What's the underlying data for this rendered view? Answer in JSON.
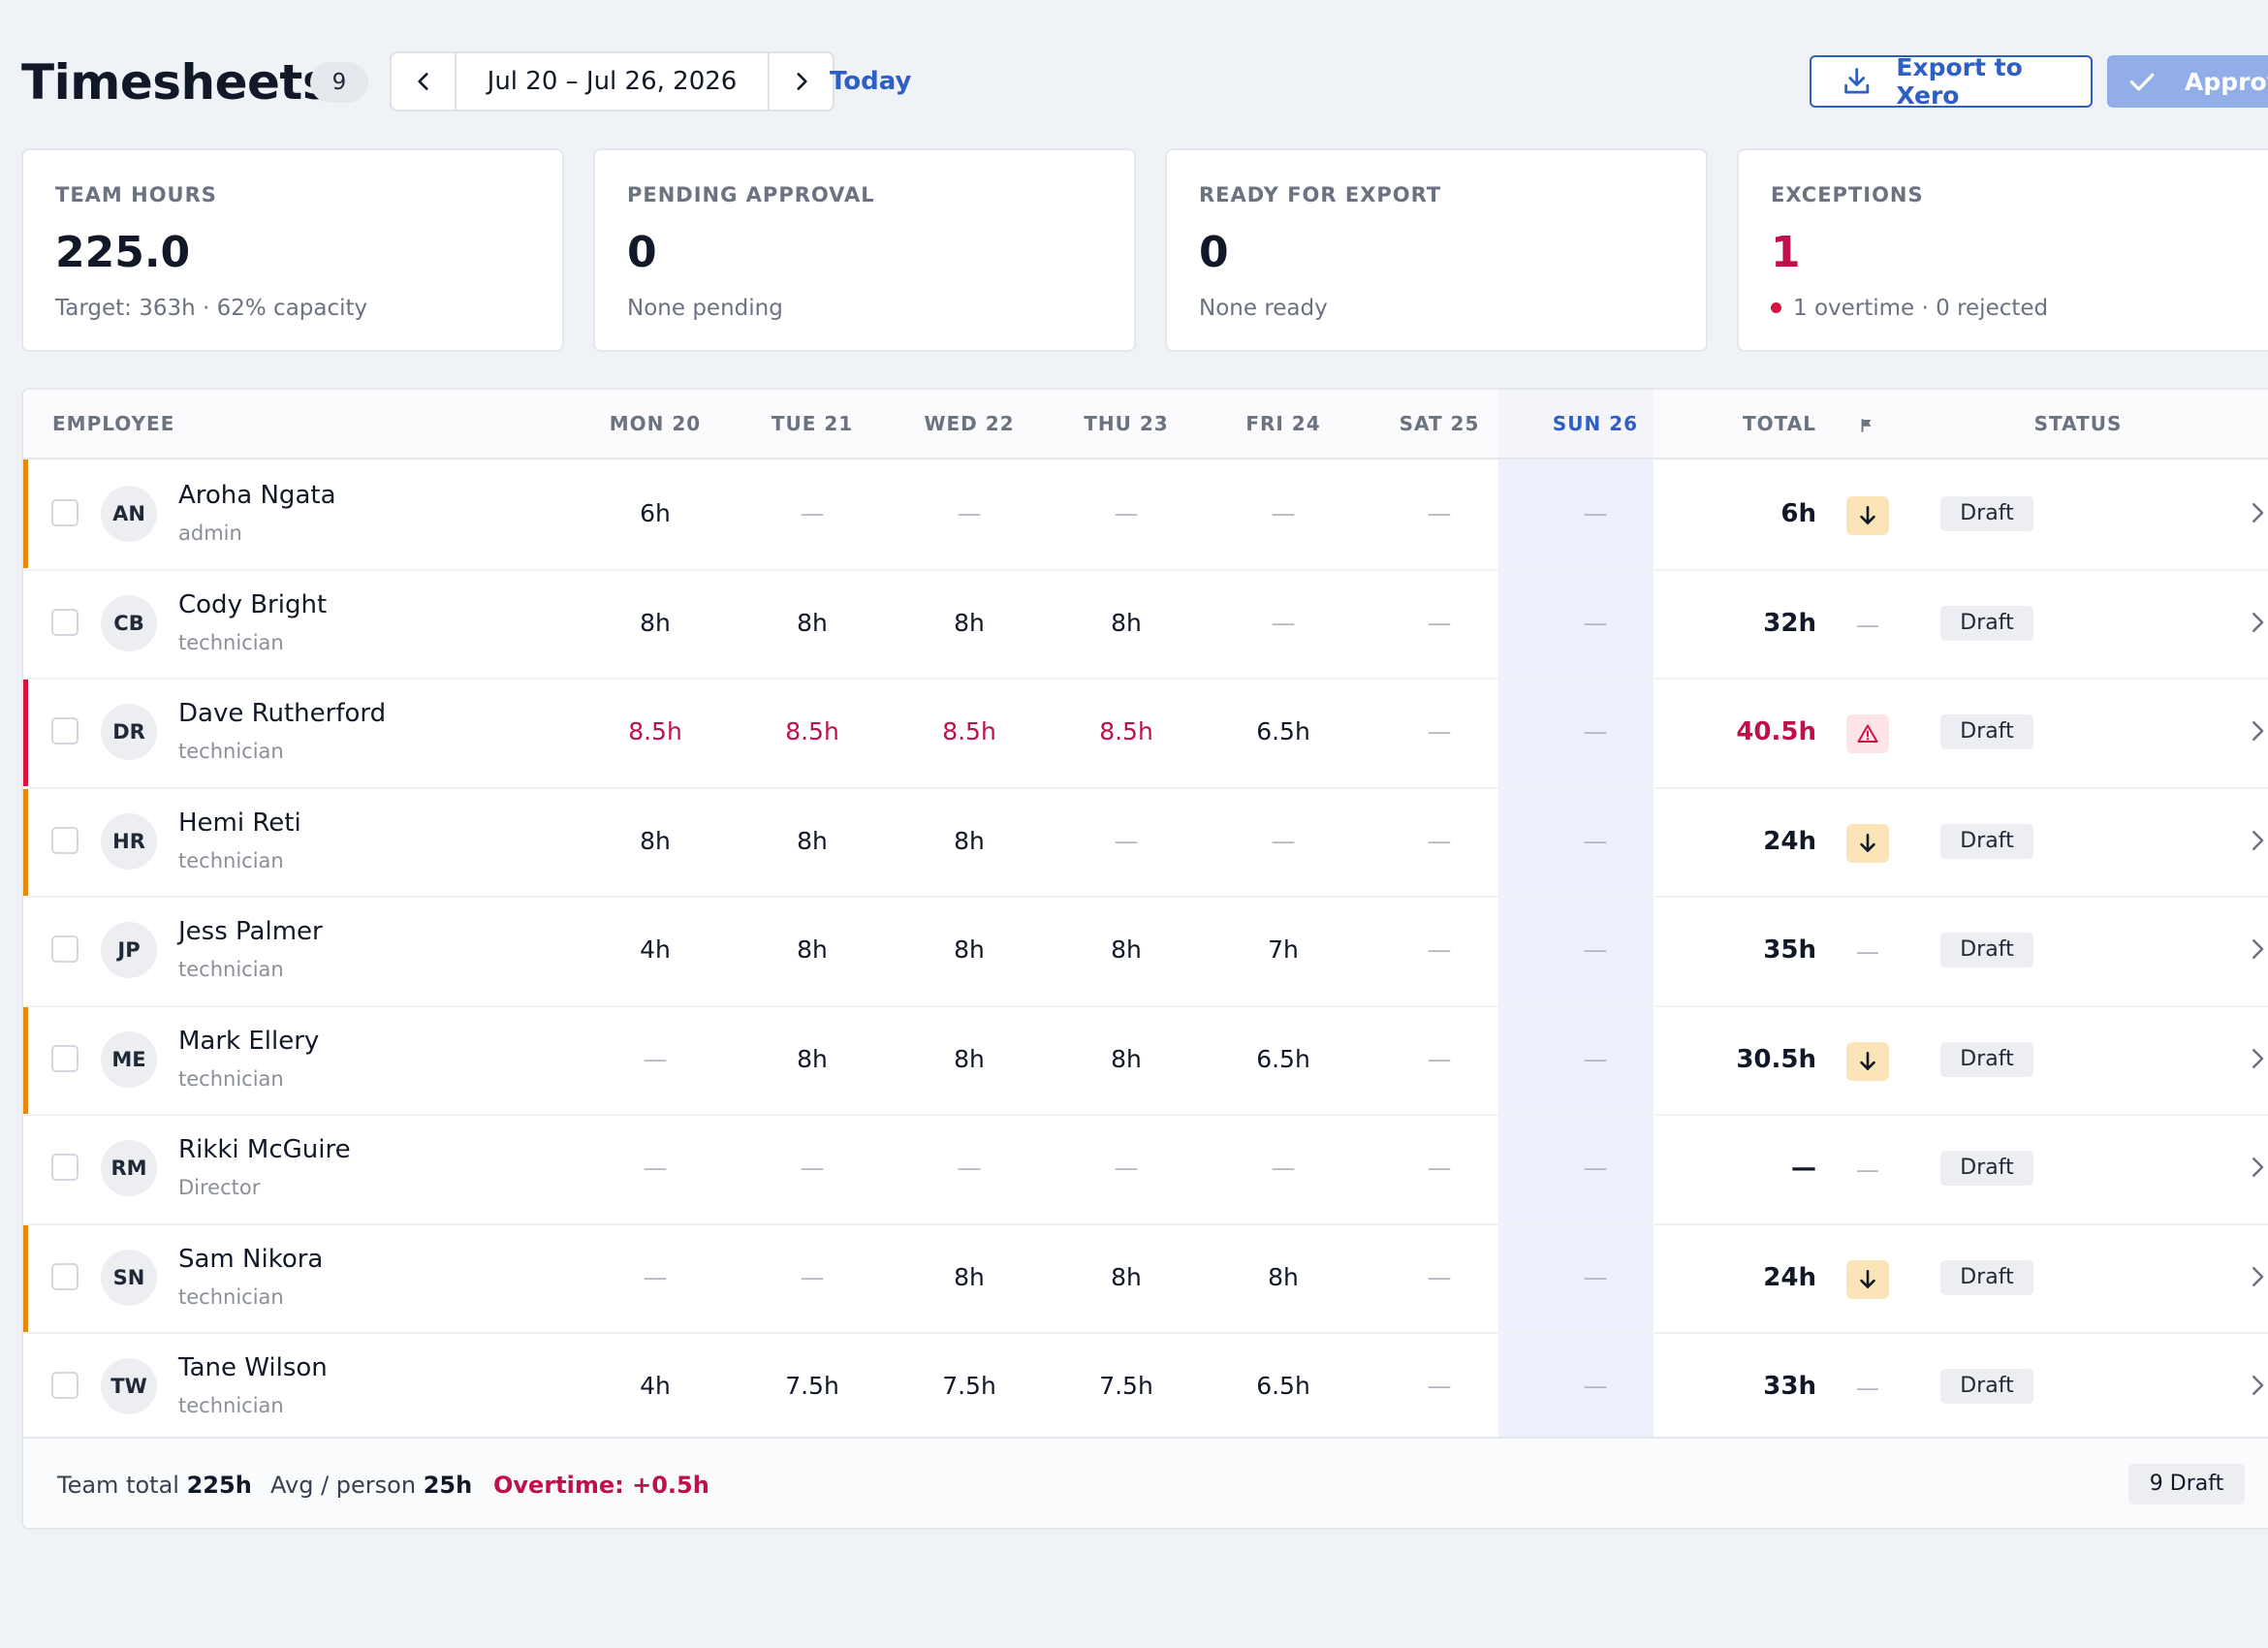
{
  "header": {
    "title": "Timesheets",
    "count": "9",
    "date_range": "Jul 20 – Jul 26, 2026",
    "today_label": "Today",
    "export_label": "Export to Xero",
    "approve_label": "Approve"
  },
  "cards": [
    {
      "label": "TEAM HOURS",
      "value": "225.0",
      "sub": "Target: 363h · 62% capacity"
    },
    {
      "label": "PENDING APPROVAL",
      "value": "0",
      "sub": "None pending"
    },
    {
      "label": "READY FOR EXPORT",
      "value": "0",
      "sub": "None ready"
    },
    {
      "label": "EXCEPTIONS",
      "value": "1",
      "sub": "1 overtime · 0 rejected"
    }
  ],
  "table": {
    "headers": {
      "employee": "EMPLOYEE",
      "days": [
        "MON 20",
        "TUE 21",
        "WED 22",
        "THU 23",
        "FRI 24",
        "SAT 25",
        "SUN 26"
      ],
      "total": "TOTAL",
      "status": "STATUS"
    },
    "rows": [
      {
        "initials": "AN",
        "name": "Aroha Ngata",
        "role": "admin",
        "days": [
          "6h",
          "—",
          "—",
          "—",
          "—",
          "—",
          "—"
        ],
        "total": "6h"
      },
      {
        "initials": "CB",
        "name": "Cody Bright",
        "role": "technician",
        "days": [
          "8h",
          "8h",
          "8h",
          "8h",
          "—",
          "—",
          "—"
        ],
        "total": "32h"
      },
      {
        "initials": "DR",
        "name": "Dave Rutherford",
        "role": "technician",
        "days": [
          "8.5h",
          "8.5h",
          "8.5h",
          "8.5h",
          "6.5h",
          "—",
          "—"
        ],
        "total": "40.5h"
      },
      {
        "initials": "HR",
        "name": "Hemi Reti",
        "role": "technician",
        "days": [
          "8h",
          "8h",
          "8h",
          "—",
          "—",
          "—",
          "—"
        ],
        "total": "24h"
      },
      {
        "initials": "JP",
        "name": "Jess Palmer",
        "role": "technician",
        "days": [
          "4h",
          "8h",
          "8h",
          "8h",
          "7h",
          "—",
          "—"
        ],
        "total": "35h"
      },
      {
        "initials": "ME",
        "name": "Mark Ellery",
        "role": "technician",
        "days": [
          "—",
          "8h",
          "8h",
          "8h",
          "6.5h",
          "—",
          "—"
        ],
        "total": "30.5h"
      },
      {
        "initials": "RM",
        "name": "Rikki McGuire",
        "role": "Director",
        "days": [
          "—",
          "—",
          "—",
          "—",
          "—",
          "—",
          "—"
        ],
        "total": "—"
      },
      {
        "initials": "SN",
        "name": "Sam Nikora",
        "role": "technician",
        "days": [
          "—",
          "—",
          "8h",
          "8h",
          "8h",
          "—",
          "—"
        ],
        "total": "24h"
      },
      {
        "initials": "TW",
        "name": "Tane Wilson",
        "role": "technician",
        "days": [
          "4h",
          "7.5h",
          "7.5h",
          "7.5h",
          "6.5h",
          "—",
          "—"
        ],
        "total": "33h"
      }
    ],
    "row_status": "Draft",
    "flag_empty": "—",
    "colors": {
      "orange_marker": "#e48a0c",
      "red_marker": "#d6133f",
      "overtime_red": "#c01048",
      "accent_blue": "#2d5fc4"
    },
    "row_flags": [
      "arrow-down-icon",
      "none",
      "warning-icon",
      "arrow-down-icon",
      "none",
      "arrow-down-icon",
      "none",
      "arrow-down-icon",
      "none"
    ],
    "row_markers": [
      "orange",
      "none",
      "red",
      "orange",
      "none",
      "orange",
      "none",
      "orange",
      "none"
    ],
    "overtime_cells": [
      [],
      [],
      [
        0,
        1,
        2,
        3
      ],
      [],
      [],
      [],
      [],
      [],
      []
    ],
    "overtime_total_rows": [
      2
    ]
  },
  "footer": {
    "team_total_label": "Team total",
    "team_total_value": "225h",
    "avg_label": "Avg / person",
    "avg_value": "25h",
    "overtime": "Overtime: +0.5h",
    "draft_count": "9 Draft"
  }
}
